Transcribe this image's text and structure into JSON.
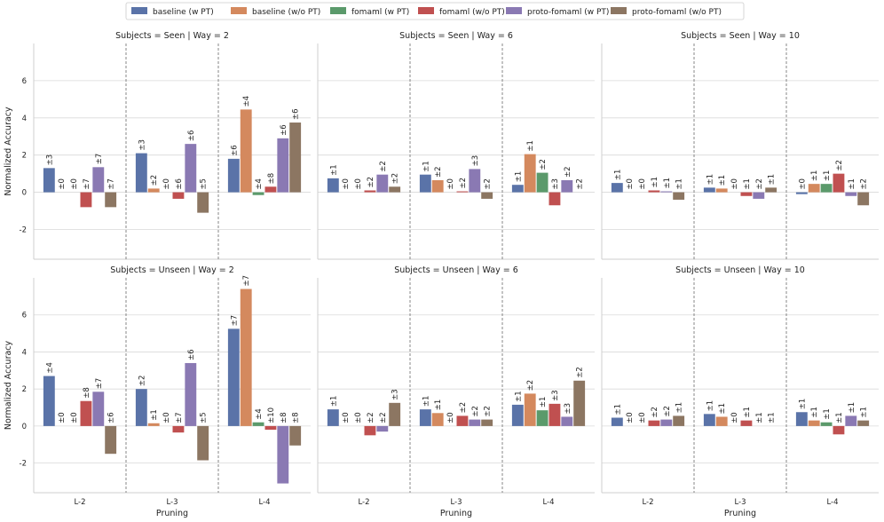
{
  "colors": {
    "baseline_w": "#5a73a8",
    "baseline_wo": "#d4895e",
    "fomaml_w": "#5b9a6b",
    "fomaml_wo": "#c05050",
    "proto_w": "#8a79b3",
    "proto_wo": "#8c7662"
  },
  "legend": [
    {
      "key": "baseline_w",
      "label": "baseline (w PT)"
    },
    {
      "key": "baseline_wo",
      "label": "baseline (w/o PT)"
    },
    {
      "key": "fomaml_w",
      "label": "fomaml (w PT)"
    },
    {
      "key": "fomaml_wo",
      "label": "fomaml (w/o PT)"
    },
    {
      "key": "proto_w",
      "label": "proto-fomaml (w PT)"
    },
    {
      "key": "proto_wo",
      "label": "proto-fomaml (w/o PT)"
    }
  ],
  "chart_data": {
    "type": "bar",
    "ylabel": "Normalized Accuracy",
    "xlabel": "Pruning",
    "categories": [
      "L-2",
      "L-3",
      "L-4"
    ],
    "yticks": [
      -2,
      0,
      2,
      4,
      6
    ],
    "ylim_top": [
      -3.6,
      8.0
    ],
    "ylim_bottom": [
      -3.6,
      8.0
    ],
    "panels": [
      {
        "title": "Subjects = Seen | Way = 2",
        "groups": [
          {
            "values": [
              1.3,
              0,
              0,
              -0.8,
              1.35,
              -0.8
            ],
            "errors": [
              "±3",
              "±0",
              "±0",
              "±7",
              "±7",
              "±7"
            ]
          },
          {
            "values": [
              2.1,
              0.2,
              0,
              -0.35,
              2.6,
              -1.1
            ],
            "errors": [
              "±3",
              "±2",
              "±0",
              "±6",
              "±6",
              "±5"
            ]
          },
          {
            "values": [
              1.8,
              4.45,
              -0.15,
              0.3,
              2.9,
              3.75
            ],
            "errors": [
              "±6",
              "±4",
              "±4",
              "±8",
              "±6",
              "±6"
            ]
          }
        ]
      },
      {
        "title": "Subjects = Seen | Way = 6",
        "groups": [
          {
            "values": [
              0.75,
              0,
              0,
              0.1,
              0.95,
              0.3
            ],
            "errors": [
              "±1",
              "±0",
              "±0",
              "±2",
              "±2",
              "±2"
            ]
          },
          {
            "values": [
              0.95,
              0.65,
              0,
              0.05,
              1.25,
              -0.35
            ],
            "errors": [
              "±1",
              "±2",
              "±0",
              "±2",
              "±3",
              "±2"
            ]
          },
          {
            "values": [
              0.4,
              2.05,
              1.05,
              -0.7,
              0.65,
              0
            ],
            "errors": [
              "±1",
              "±1",
              "±2",
              "±3",
              "±2",
              "±2"
            ]
          }
        ]
      },
      {
        "title": "Subjects = Seen | Way = 10",
        "groups": [
          {
            "values": [
              0.5,
              0,
              0,
              0.1,
              0.05,
              -0.4
            ],
            "errors": [
              "±1",
              "±0",
              "±0",
              "±1",
              "±1",
              "±1"
            ]
          },
          {
            "values": [
              0.25,
              0.2,
              0,
              -0.2,
              -0.35,
              0.25
            ],
            "errors": [
              "±1",
              "±1",
              "±0",
              "±1",
              "±2",
              "±1"
            ]
          },
          {
            "values": [
              -0.1,
              0.45,
              0.45,
              1.0,
              -0.2,
              -0.7
            ],
            "errors": [
              "±0",
              "±1",
              "±1",
              "±2",
              "±1",
              "±2"
            ]
          }
        ]
      },
      {
        "title": "Subjects = Unseen | Way = 2",
        "groups": [
          {
            "values": [
              2.7,
              0,
              0,
              1.35,
              1.85,
              -1.5
            ],
            "errors": [
              "±4",
              "±0",
              "±0",
              "±8",
              "±7",
              "±6"
            ]
          },
          {
            "values": [
              2.0,
              0.15,
              0,
              -0.35,
              3.4,
              -1.85
            ],
            "errors": [
              "±2",
              "±1",
              "±0",
              "±7",
              "±6",
              "±5"
            ]
          },
          {
            "values": [
              5.25,
              7.4,
              0.2,
              -0.2,
              -3.1,
              -1.05
            ],
            "errors": [
              "±7",
              "±7",
              "±4",
              "±10",
              "±8",
              "±8"
            ]
          }
        ]
      },
      {
        "title": "Subjects = Unseen | Way = 6",
        "groups": [
          {
            "values": [
              0.9,
              0,
              0,
              -0.5,
              -0.3,
              1.25
            ],
            "errors": [
              "±1",
              "±0",
              "±0",
              "±2",
              "±2",
              "±3"
            ]
          },
          {
            "values": [
              0.9,
              0.7,
              0,
              0.55,
              0.35,
              0.35
            ],
            "errors": [
              "±1",
              "±1",
              "±0",
              "±2",
              "±2",
              "±2"
            ]
          },
          {
            "values": [
              1.15,
              1.75,
              0.85,
              1.2,
              0.5,
              2.45
            ],
            "errors": [
              "±1",
              "±2",
              "±1",
              "±3",
              "±3",
              "±2"
            ]
          }
        ]
      },
      {
        "title": "Subjects = Unseen | Way = 10",
        "groups": [
          {
            "values": [
              0.45,
              0,
              0,
              0.3,
              0.35,
              0.55
            ],
            "errors": [
              "±1",
              "±0",
              "±0",
              "±2",
              "±2",
              "±1"
            ]
          },
          {
            "values": [
              0.65,
              0.5,
              0,
              0.3,
              0,
              0
            ],
            "errors": [
              "±1",
              "±1",
              "±0",
              "±1",
              "±1",
              "±1"
            ]
          },
          {
            "values": [
              0.75,
              0.3,
              0.2,
              -0.45,
              0.55,
              0.3
            ],
            "errors": [
              "±1",
              "±1",
              "±1",
              "±1",
              "±1",
              "±1"
            ]
          }
        ]
      }
    ]
  }
}
